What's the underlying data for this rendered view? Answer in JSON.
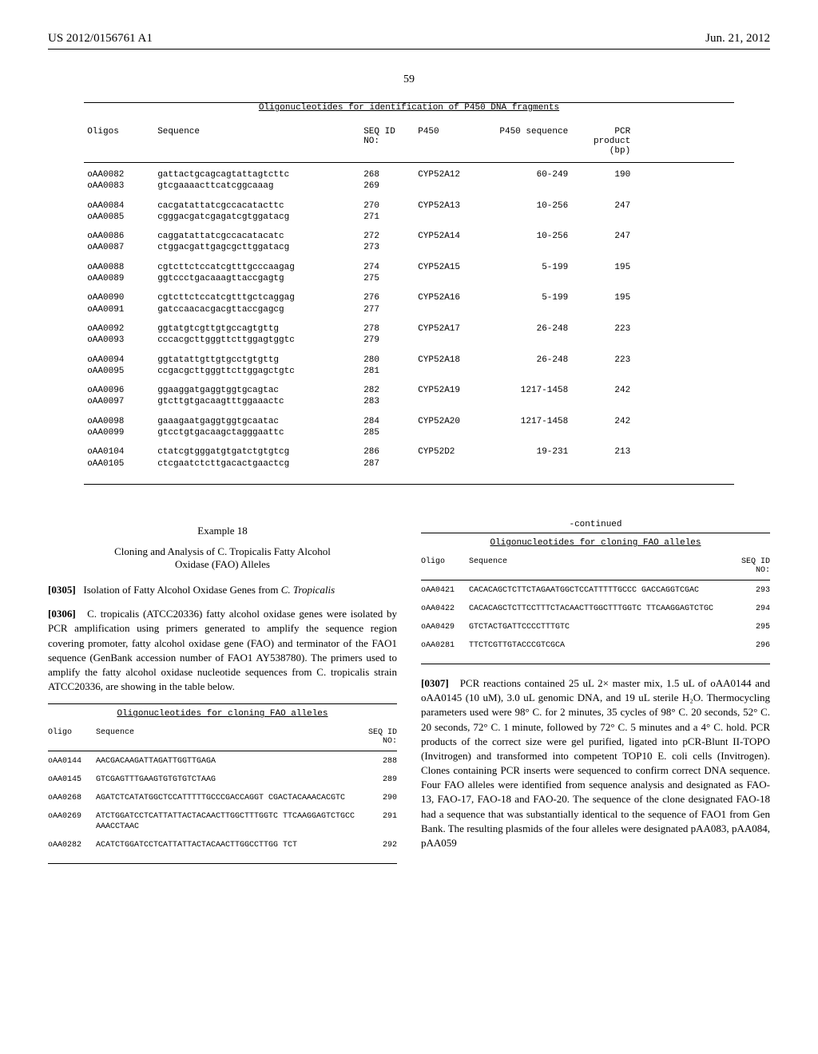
{
  "header": {
    "pub_number": "US 2012/0156761 A1",
    "date": "Jun. 21, 2012"
  },
  "page_number": "59",
  "table1": {
    "title": "Oligonucleotides for identification of P450 DNA fragments",
    "headers": {
      "oligos": "Oligos",
      "sequence": "Sequence",
      "seqid": "SEQ ID NO:",
      "p450": "P450",
      "p450seq": "P450 sequence",
      "pcr": "PCR product (bp)"
    },
    "groups": [
      {
        "rows": [
          {
            "oligo": "oAA0082",
            "seq": "gattactgcagcagtattagtcttc",
            "seqid": "268",
            "p450": "CYP52A12",
            "p450seq": "60-249",
            "pcr": "190"
          },
          {
            "oligo": "oAA0083",
            "seq": "gtcgaaaacttcatcggcaaag",
            "seqid": "269",
            "p450": "",
            "p450seq": "",
            "pcr": ""
          }
        ]
      },
      {
        "rows": [
          {
            "oligo": "oAA0084",
            "seq": "cacgatattatcgccacatacttc",
            "seqid": "270",
            "p450": "CYP52A13",
            "p450seq": "10-256",
            "pcr": "247"
          },
          {
            "oligo": "oAA0085",
            "seq": "cgggacgatcgagatcgtggatacg",
            "seqid": "271",
            "p450": "",
            "p450seq": "",
            "pcr": ""
          }
        ]
      },
      {
        "rows": [
          {
            "oligo": "oAA0086",
            "seq": "caggatattatcgccacatacatc",
            "seqid": "272",
            "p450": "CYP52A14",
            "p450seq": "10-256",
            "pcr": "247"
          },
          {
            "oligo": "oAA0087",
            "seq": "ctggacgattgagcgcttggatacg",
            "seqid": "273",
            "p450": "",
            "p450seq": "",
            "pcr": ""
          }
        ]
      },
      {
        "rows": [
          {
            "oligo": "oAA0088",
            "seq": "cgtcttctccatcgtttgcccaagag",
            "seqid": "274",
            "p450": "CYP52A15",
            "p450seq": "5-199",
            "pcr": "195"
          },
          {
            "oligo": "oAA0089",
            "seq": "ggtccctgacaaagttaccgagtg",
            "seqid": "275",
            "p450": "",
            "p450seq": "",
            "pcr": ""
          }
        ]
      },
      {
        "rows": [
          {
            "oligo": "oAA0090",
            "seq": "cgtcttctccatcgtttgctcaggag",
            "seqid": "276",
            "p450": "CYP52A16",
            "p450seq": "5-199",
            "pcr": "195"
          },
          {
            "oligo": "oAA0091",
            "seq": "gatccaacacgacgttaccgagcg",
            "seqid": "277",
            "p450": "",
            "p450seq": "",
            "pcr": ""
          }
        ]
      },
      {
        "rows": [
          {
            "oligo": "oAA0092",
            "seq": "ggtatgtcgttgtgccagtgttg",
            "seqid": "278",
            "p450": "CYP52A17",
            "p450seq": "26-248",
            "pcr": "223"
          },
          {
            "oligo": "oAA0093",
            "seq": "cccacgcttgggttcttggagtggtc",
            "seqid": "279",
            "p450": "",
            "p450seq": "",
            "pcr": ""
          }
        ]
      },
      {
        "rows": [
          {
            "oligo": "oAA0094",
            "seq": "ggtatattgttgtgcctgtgttg",
            "seqid": "280",
            "p450": "CYP52A18",
            "p450seq": "26-248",
            "pcr": "223"
          },
          {
            "oligo": "oAA0095",
            "seq": "ccgacgcttgggttcttggagctgtc",
            "seqid": "281",
            "p450": "",
            "p450seq": "",
            "pcr": ""
          }
        ]
      },
      {
        "rows": [
          {
            "oligo": "oAA0096",
            "seq": "ggaaggatgaggtggtgcagtac",
            "seqid": "282",
            "p450": "CYP52A19",
            "p450seq": "1217-1458",
            "pcr": "242"
          },
          {
            "oligo": "oAA0097",
            "seq": "gtcttgtgacaagtttggaaactc",
            "seqid": "283",
            "p450": "",
            "p450seq": "",
            "pcr": ""
          }
        ]
      },
      {
        "rows": [
          {
            "oligo": "oAA0098",
            "seq": "gaaagaatgaggtggtgcaatac",
            "seqid": "284",
            "p450": "CYP52A20",
            "p450seq": "1217-1458",
            "pcr": "242"
          },
          {
            "oligo": "oAA0099",
            "seq": "gtcctgtgacaagctagggaattc",
            "seqid": "285",
            "p450": "",
            "p450seq": "",
            "pcr": ""
          }
        ]
      },
      {
        "rows": [
          {
            "oligo": "oAA0104",
            "seq": "ctatcgtgggatgtgatctgtgtcg",
            "seqid": "286",
            "p450": "CYP52D2",
            "p450seq": "19-231",
            "pcr": "213"
          },
          {
            "oligo": "oAA0105",
            "seq": "ctcgaatctcttgacactgaactcg",
            "seqid": "287",
            "p450": "",
            "p450seq": "",
            "pcr": ""
          }
        ]
      }
    ]
  },
  "example": {
    "number": "Example 18",
    "title_line1": "Cloning and Analysis of C. Tropicalis Fatty Alcohol",
    "title_line2": "Oxidase (FAO) Alleles"
  },
  "para305": {
    "num": "[0305]",
    "text": "Isolation of Fatty Alcohol Oxidase Genes from C. Tropicalis"
  },
  "para306": {
    "num": "[0306]",
    "text": "C. tropicalis (ATCC20336) fatty alcohol oxidase genes were isolated by PCR amplification using primers generated to amplify the sequence region covering promoter, fatty alcohol oxidase gene (FAO) and terminator of the FAO1 sequence (GenBank accession number of FAO1 AY538780). The primers used to amplify the fatty alcohol oxidase nucleotide sequences from C. tropicalis strain ATCC20336, are showing in the table below."
  },
  "table2": {
    "title": "Oligonucleotides for cloning FAO alleles",
    "headers": {
      "oligo": "Oligo",
      "seq": "Sequence",
      "seqid": "SEQ ID NO:"
    },
    "rows": [
      {
        "oligo": "oAA0144",
        "seq": "AACGACAAGATTAGATTGGTTGAGA",
        "seqid": "288"
      },
      {
        "oligo": "oAA0145",
        "seq": "GTCGAGTTTGAAGTGTGTGTCTAAG",
        "seqid": "289"
      },
      {
        "oligo": "oAA0268",
        "seq": "AGATCTCATATGGCTCCATTTTTGCCCGACCAGGT CGACTACAAACACGTC",
        "seqid": "290"
      },
      {
        "oligo": "oAA0269",
        "seq": "ATCTGGATCCTCATTATTACTACAACTTGGCTTTGGTC TTCAAGGAGTCTGCCAAACCTAAC",
        "seqid": "291"
      },
      {
        "oligo": "oAA0282",
        "seq": "ACATCTGGATCCTCATTATTACTACAACTTGGCCTTGG TCT",
        "seqid": "292"
      }
    ]
  },
  "table2b": {
    "continued": "-continued",
    "title": "Oligonucleotides for cloning FAO alleles",
    "headers": {
      "oligo": "Oligo",
      "seq": "Sequence",
      "seqid": "SEQ ID NO:"
    },
    "rows": [
      {
        "oligo": "oAA0421",
        "seq": "CACACAGCTCTTCTAGAATGGCTCCATTTTTGCCC GACCAGGTCGAC",
        "seqid": "293"
      },
      {
        "oligo": "oAA0422",
        "seq": "CACACAGCTCTTCCTTTCTACAACTTGGCTTTGGTC TTCAAGGAGTCTGC",
        "seqid": "294"
      },
      {
        "oligo": "oAA0429",
        "seq": "GTCTACTGATTCCCCTTTGTC",
        "seqid": "295"
      },
      {
        "oligo": "oAA0281",
        "seq": "TTCTCGTTGTACCCGTCGCA",
        "seqid": "296"
      }
    ]
  },
  "para307": {
    "num": "[0307]",
    "text": "PCR reactions contained 25 uL 2× master mix, 1.5 uL of oAA0144 and oAA0145 (10 uM), 3.0 uL genomic DNA, and 19 uL sterile H₂O. Thermocycling parameters used were 98° C. for 2 minutes, 35 cycles of 98° C. 20 seconds, 52° C. 20 seconds, 72° C. 1 minute, followed by 72° C. 5 minutes and a 4° C. hold. PCR products of the correct size were gel purified, ligated into pCR-Blunt II-TOPO (Invitrogen) and transformed into competent TOP10 E. coli cells (Invitrogen). Clones containing PCR inserts were sequenced to confirm correct DNA sequence. Four FAO alleles were identified from sequence analysis and designated as FAO-13, FAO-17, FAO-18 and FAO-20. The sequence of the clone designated FAO-18 had a sequence that was substantially identical to the sequence of FAO1 from Gen Bank. The resulting plasmids of the four alleles were designated pAA083, pAA084, pAA059"
  }
}
